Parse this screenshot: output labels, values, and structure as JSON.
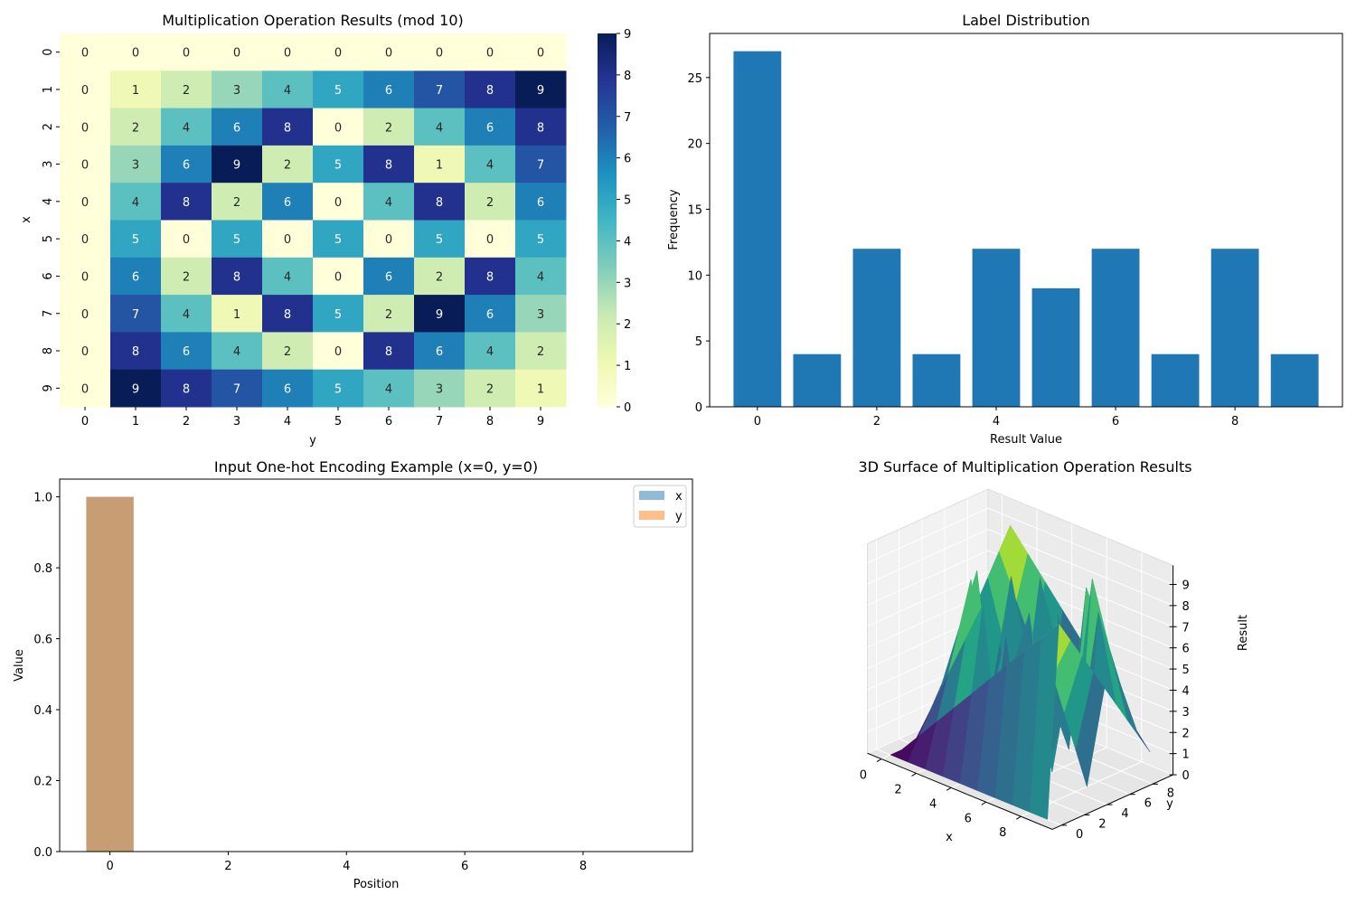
{
  "chart_data": [
    {
      "type": "heatmap",
      "title": "Multiplication Operation Results (mod 10)",
      "xlabel": "y",
      "ylabel": "x",
      "x_ticks": [
        "0",
        "1",
        "2",
        "3",
        "4",
        "5",
        "6",
        "7",
        "8",
        "9"
      ],
      "y_ticks": [
        "0",
        "1",
        "2",
        "3",
        "4",
        "5",
        "6",
        "7",
        "8",
        "9"
      ],
      "colormap": "YlGnBu",
      "vmin": 0,
      "vmax": 9,
      "colorbar_ticks": [
        0,
        1,
        2,
        3,
        4,
        5,
        6,
        7,
        8,
        9
      ],
      "values": [
        [
          0,
          0,
          0,
          0,
          0,
          0,
          0,
          0,
          0,
          0
        ],
        [
          0,
          1,
          2,
          3,
          4,
          5,
          6,
          7,
          8,
          9
        ],
        [
          0,
          2,
          4,
          6,
          8,
          0,
          2,
          4,
          6,
          8
        ],
        [
          0,
          3,
          6,
          9,
          2,
          5,
          8,
          1,
          4,
          7
        ],
        [
          0,
          4,
          8,
          2,
          6,
          0,
          4,
          8,
          2,
          6
        ],
        [
          0,
          5,
          0,
          5,
          0,
          5,
          0,
          5,
          0,
          5
        ],
        [
          0,
          6,
          2,
          8,
          4,
          0,
          6,
          2,
          8,
          4
        ],
        [
          0,
          7,
          4,
          1,
          8,
          5,
          2,
          9,
          6,
          3
        ],
        [
          0,
          8,
          6,
          4,
          2,
          0,
          8,
          6,
          4,
          2
        ],
        [
          0,
          9,
          8,
          7,
          6,
          5,
          4,
          3,
          2,
          1
        ]
      ]
    },
    {
      "type": "bar",
      "title": "Label Distribution",
      "xlabel": "Result Value",
      "ylabel": "Frequency",
      "categories": [
        0,
        1,
        2,
        3,
        4,
        5,
        6,
        7,
        8,
        9
      ],
      "values": [
        27,
        4,
        12,
        4,
        12,
        9,
        12,
        4,
        12,
        4
      ],
      "xlim": [
        -0.8,
        9.8
      ],
      "ylim": [
        0,
        28.35
      ],
      "x_ticks": [
        0,
        2,
        4,
        6,
        8
      ],
      "y_ticks": [
        0,
        5,
        10,
        15,
        20,
        25
      ],
      "color": "#1f77b4"
    },
    {
      "type": "bar",
      "title": "Input One-hot Encoding Example (x=0, y=0)",
      "xlabel": "Position",
      "ylabel": "Value",
      "categories": [
        0,
        1,
        2,
        3,
        4,
        5,
        6,
        7,
        8,
        9
      ],
      "series": [
        {
          "name": "x",
          "values": [
            1,
            0,
            0,
            0,
            0,
            0,
            0,
            0,
            0,
            0
          ],
          "color": "#1f77b4"
        },
        {
          "name": "y",
          "values": [
            1,
            0,
            0,
            0,
            0,
            0,
            0,
            0,
            0,
            0
          ],
          "color": "#ff7f0e"
        }
      ],
      "alpha": 0.5,
      "xlim": [
        -0.85,
        9.85
      ],
      "ylim": [
        0,
        1.05
      ],
      "x_ticks": [
        0,
        2,
        4,
        6,
        8
      ],
      "y_ticks": [
        "0.0",
        "0.2",
        "0.4",
        "0.6",
        "0.8",
        "1.0"
      ],
      "legend": "top-right"
    },
    {
      "type": "surface",
      "title": "3D Surface of Multiplication Operation Results",
      "xlabel": "x",
      "ylabel": "y",
      "zlabel": "Result",
      "x_ticks": [
        0,
        2,
        4,
        6,
        8
      ],
      "y_ticks": [
        0,
        2,
        4,
        6,
        8
      ],
      "z_ticks": [
        0,
        1,
        2,
        3,
        4,
        5,
        6,
        7,
        8,
        9
      ],
      "colormap": "viridis",
      "description_values": "z = (x * y) mod 10 for x, y in 0..9"
    }
  ]
}
